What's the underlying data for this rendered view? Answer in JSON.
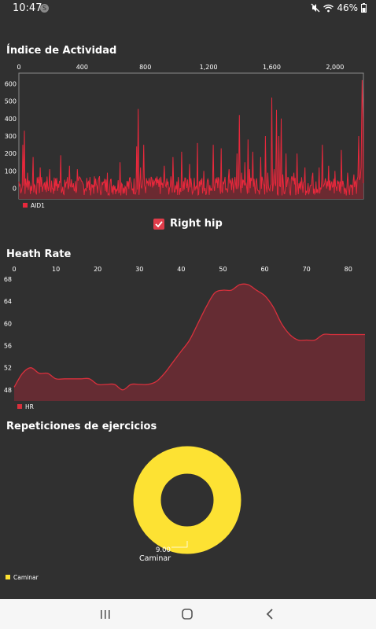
{
  "status_bar": {
    "time": "10:47",
    "notification_badge": "S",
    "battery_percent": "46%"
  },
  "activity_section": {
    "title": "Índice de Actividad"
  },
  "checkbox": {
    "label": "Right hip",
    "checked": true
  },
  "heart_section": {
    "title": "Heath Rate"
  },
  "exercise_section": {
    "title": "Repeticiones de ejercicios"
  },
  "colors": {
    "background": "#303030",
    "activity_line": "#e8283c",
    "activity_fill": "#6b2a31",
    "hr_line": "#d8303c",
    "hr_fill": "#652c33",
    "donut": "#fde233",
    "checkbox": "#e03c4a"
  },
  "chart_data": [
    {
      "type": "area",
      "x_axis_ticks": [
        "0",
        "400",
        "800",
        "1,200",
        "1,600",
        "2,000"
      ],
      "y_axis_ticks": [
        "0",
        "100",
        "200",
        "300",
        "400",
        "500",
        "600"
      ],
      "xlim": [
        0,
        2180
      ],
      "ylim": [
        -60,
        660
      ],
      "legend": [
        "AID1"
      ],
      "legend_position": "bottom-left",
      "peaks": [
        [
          0,
          40
        ],
        [
          25,
          250
        ],
        [
          35,
          330
        ],
        [
          55,
          90
        ],
        [
          90,
          180
        ],
        [
          120,
          30
        ],
        [
          135,
          120
        ],
        [
          170,
          40
        ],
        [
          195,
          110
        ],
        [
          240,
          60
        ],
        [
          265,
          190
        ],
        [
          290,
          50
        ],
        [
          320,
          130
        ],
        [
          345,
          30
        ],
        [
          370,
          110
        ],
        [
          400,
          40
        ],
        [
          430,
          60
        ],
        [
          470,
          20
        ],
        [
          510,
          70
        ],
        [
          530,
          20
        ],
        [
          560,
          90
        ],
        [
          600,
          20
        ],
        [
          640,
          150
        ],
        [
          655,
          20
        ],
        [
          700,
          60
        ],
        [
          745,
          240
        ],
        [
          755,
          455
        ],
        [
          770,
          120
        ],
        [
          790,
          250
        ],
        [
          815,
          40
        ],
        [
          850,
          50
        ],
        [
          890,
          60
        ],
        [
          920,
          130
        ],
        [
          940,
          20
        ],
        [
          975,
          180
        ],
        [
          1000,
          40
        ],
        [
          1030,
          210
        ],
        [
          1050,
          60
        ],
        [
          1080,
          140
        ],
        [
          1110,
          60
        ],
        [
          1130,
          260
        ],
        [
          1150,
          50
        ],
        [
          1170,
          100
        ],
        [
          1200,
          40
        ],
        [
          1230,
          250
        ],
        [
          1250,
          30
        ],
        [
          1280,
          230
        ],
        [
          1300,
          40
        ],
        [
          1330,
          110
        ],
        [
          1350,
          60
        ],
        [
          1380,
          200
        ],
        [
          1395,
          420
        ],
        [
          1410,
          90
        ],
        [
          1430,
          150
        ],
        [
          1450,
          280
        ],
        [
          1460,
          110
        ],
        [
          1480,
          210
        ],
        [
          1500,
          40
        ],
        [
          1530,
          180
        ],
        [
          1560,
          300
        ],
        [
          1575,
          90
        ],
        [
          1600,
          520
        ],
        [
          1615,
          110
        ],
        [
          1630,
          450
        ],
        [
          1645,
          300
        ],
        [
          1660,
          400
        ],
        [
          1670,
          80
        ],
        [
          1690,
          200
        ],
        [
          1710,
          30
        ],
        [
          1740,
          90
        ],
        [
          1760,
          200
        ],
        [
          1780,
          40
        ],
        [
          1810,
          120
        ],
        [
          1830,
          30
        ],
        [
          1860,
          90
        ],
        [
          1880,
          40
        ],
        [
          1900,
          120
        ],
        [
          1920,
          250
        ],
        [
          1935,
          30
        ],
        [
          1960,
          130
        ],
        [
          1980,
          40
        ],
        [
          2000,
          100
        ],
        [
          2020,
          30
        ],
        [
          2040,
          220
        ],
        [
          2055,
          20
        ],
        [
          2080,
          90
        ],
        [
          2100,
          20
        ],
        [
          2120,
          80
        ],
        [
          2140,
          50
        ],
        [
          2150,
          300
        ],
        [
          2165,
          120
        ],
        [
          2172,
          620
        ],
        [
          2178,
          400
        ],
        [
          2180,
          30
        ]
      ]
    },
    {
      "type": "area",
      "x_axis_ticks": [
        "0",
        "10",
        "20",
        "30",
        "40",
        "50",
        "60",
        "70",
        "80"
      ],
      "y_axis_ticks": [
        "48",
        "52",
        "56",
        "60",
        "64",
        "68"
      ],
      "xlim": [
        0,
        84
      ],
      "ylim": [
        46,
        68
      ],
      "legend": [
        "HR"
      ],
      "legend_position": "bottom-left",
      "x": [
        0,
        2,
        4,
        6,
        8,
        10,
        12,
        14,
        16,
        18,
        20,
        22,
        24,
        26,
        28,
        30,
        32,
        34,
        36,
        38,
        40,
        42,
        44,
        46,
        48,
        50,
        52,
        54,
        56,
        58,
        60,
        62,
        64,
        66,
        68,
        70,
        72,
        74,
        76,
        78,
        80,
        82,
        84
      ],
      "values": [
        48.5,
        51,
        52,
        51,
        51,
        50,
        50,
        50,
        50,
        50,
        49,
        49,
        49,
        48,
        49,
        49,
        49,
        49.5,
        51,
        53,
        55,
        57,
        60,
        63,
        65.5,
        66,
        66,
        67,
        67,
        66,
        65,
        63,
        60,
        58,
        57,
        57,
        57,
        58,
        58,
        58,
        58,
        58,
        58
      ]
    },
    {
      "type": "pie",
      "donut": true,
      "categories": [
        "Caminar"
      ],
      "values": [
        9.0
      ],
      "value_labels": [
        "9.00"
      ],
      "legend_position": "bottom-left"
    }
  ]
}
